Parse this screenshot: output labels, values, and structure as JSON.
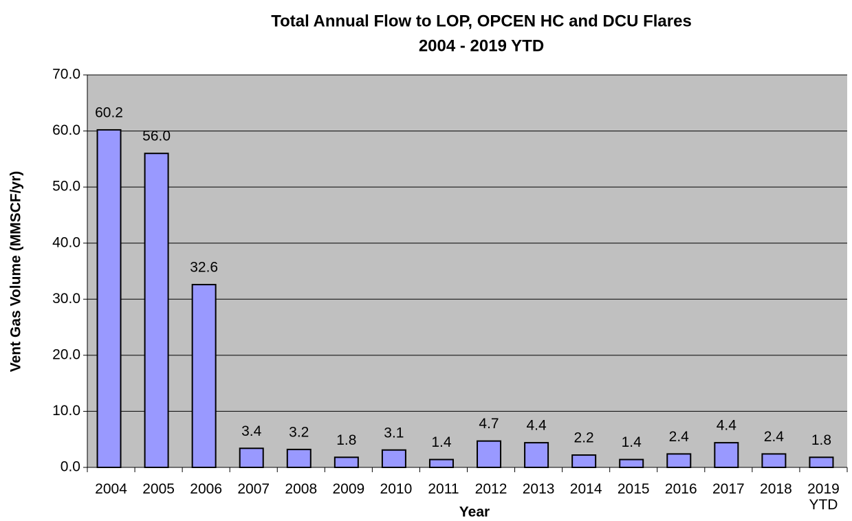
{
  "chart_data": {
    "type": "bar",
    "title": "Total Annual Flow to LOP, OPCEN HC and DCU Flares",
    "subtitle": "2004 - 2019 YTD",
    "x_label": "Year",
    "y_label": "Vent Gas Volume (MMSCF/yr)",
    "categories": [
      "2004",
      "2005",
      "2006",
      "2007",
      "2008",
      "2009",
      "2010",
      "2011",
      "2012",
      "2013",
      "2014",
      "2015",
      "2016",
      "2017",
      "2018",
      "2019 YTD"
    ],
    "values": [
      60.2,
      56.0,
      32.6,
      3.4,
      3.2,
      1.8,
      3.1,
      1.4,
      4.7,
      4.4,
      2.2,
      1.4,
      2.4,
      4.4,
      2.4,
      1.8
    ],
    "value_labels": [
      "60.2",
      "56.0",
      "32.6",
      "3.4",
      "3.2",
      "1.8",
      "3.1",
      "1.4",
      "4.7",
      "4.4",
      "2.2",
      "1.4",
      "2.4",
      "4.4",
      "2.4",
      "1.8"
    ],
    "color": "#9999ff",
    "plot_background": "#c0c0c0",
    "ylim": [
      0,
      70
    ],
    "yticks": [
      {
        "value": 0,
        "label": "0.0"
      },
      {
        "value": 10,
        "label": "10.0"
      },
      {
        "value": 20,
        "label": "20.0"
      },
      {
        "value": 30,
        "label": "30.0"
      },
      {
        "value": 40,
        "label": "40.0"
      },
      {
        "value": 50,
        "label": "50.0"
      },
      {
        "value": 60,
        "label": "60.0"
      },
      {
        "value": 70,
        "label": "70.0"
      }
    ],
    "grid": true
  }
}
